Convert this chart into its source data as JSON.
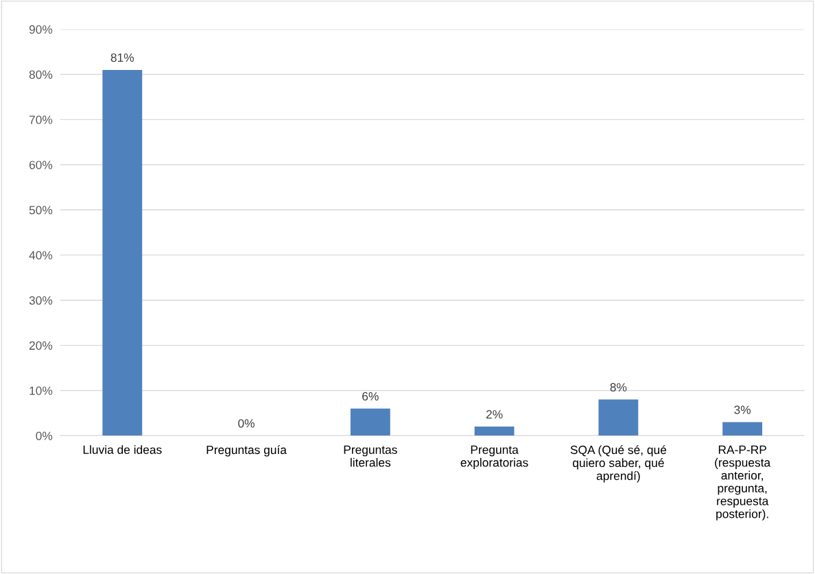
{
  "chart_data": {
    "type": "bar",
    "categories": [
      "Lluvia de ideas",
      "Preguntas guía",
      "Preguntas\nliterales",
      "Pregunta\nexploratorias",
      "SQA (Qué sé, qué\nquiero saber, qué\naprendí)",
      "RA-P-RP\n(respuesta\nanterior,\npregunta,\nrespuesta\nposterior)."
    ],
    "values": [
      81,
      0,
      6,
      2,
      8,
      3
    ],
    "value_labels": [
      "81%",
      "0%",
      "6%",
      "2%",
      "8%",
      "3%"
    ],
    "color": "#4f81bd",
    "ylim": [
      0,
      90
    ],
    "yticks": [
      {
        "value": 0,
        "label": "0%"
      },
      {
        "value": 10,
        "label": "10%"
      },
      {
        "value": 20,
        "label": "20%"
      },
      {
        "value": 30,
        "label": "30%"
      },
      {
        "value": 40,
        "label": "40%"
      },
      {
        "value": 50,
        "label": "50%"
      },
      {
        "value": 60,
        "label": "60%"
      },
      {
        "value": 70,
        "label": "70%"
      },
      {
        "value": 80,
        "label": "80%"
      },
      {
        "value": 90,
        "label": "90%"
      }
    ],
    "grid": "y"
  }
}
